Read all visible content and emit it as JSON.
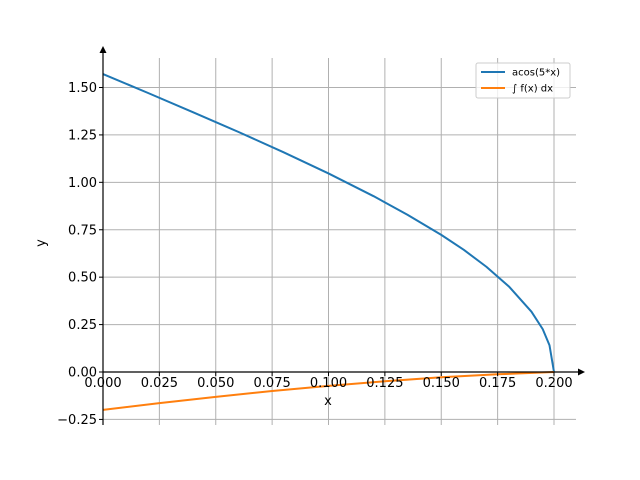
{
  "chart_data": {
    "type": "line",
    "title": "",
    "xlabel": "x",
    "ylabel": "y",
    "xlim": [
      0,
      0.21
    ],
    "ylim": [
      -0.285,
      1.7
    ],
    "x_ticks": [
      0.0,
      0.025,
      0.05,
      0.075,
      0.1,
      0.125,
      0.15,
      0.175,
      0.2
    ],
    "x_tick_labels": [
      "0.000",
      "0.025",
      "0.050",
      "0.075",
      "0.100",
      "0.125",
      "0.150",
      "0.175",
      "0.200"
    ],
    "y_ticks": [
      -0.25,
      0.0,
      0.25,
      0.5,
      0.75,
      1.0,
      1.25,
      1.5
    ],
    "y_tick_labels": [
      "−0.25",
      "0.00",
      "0.25",
      "0.50",
      "0.75",
      "1.00",
      "1.25",
      "1.50"
    ],
    "grid": true,
    "legend_position": "top-right",
    "series": [
      {
        "name": "acos(5*x)",
        "color": "#1f77b4",
        "x": [
          0.0,
          0.02,
          0.04,
          0.06,
          0.08,
          0.1,
          0.12,
          0.135,
          0.15,
          0.16,
          0.17,
          0.18,
          0.19,
          0.195,
          0.198,
          0.2
        ],
        "y": [
          1.571,
          1.471,
          1.369,
          1.266,
          1.159,
          1.047,
          0.927,
          0.829,
          0.723,
          0.644,
          0.555,
          0.451,
          0.318,
          0.226,
          0.141,
          0.0
        ]
      },
      {
        "name": "∫ f(x) dx",
        "color": "#ff7f0e",
        "x": [
          0.0,
          0.025,
          0.05,
          0.075,
          0.1,
          0.125,
          0.15,
          0.175,
          0.2
        ],
        "y": [
          -0.2,
          -0.164,
          -0.131,
          -0.1,
          -0.073,
          -0.049,
          -0.028,
          -0.012,
          0.0
        ]
      }
    ]
  }
}
